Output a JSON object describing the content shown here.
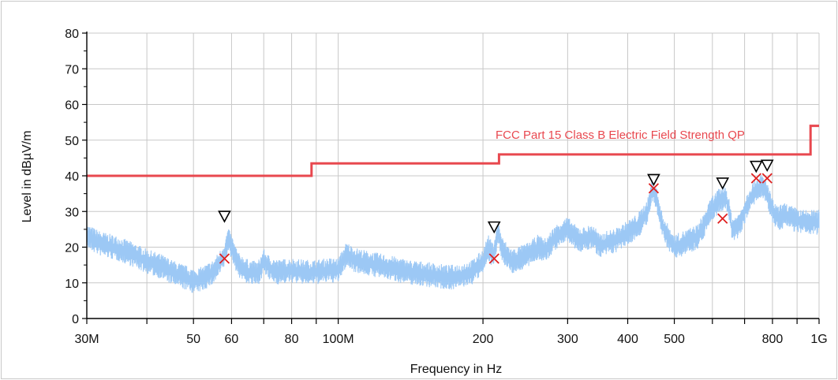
{
  "chart_data": {
    "type": "line",
    "xscale": "log",
    "xlim": [
      30000000,
      1000000000
    ],
    "ylim": [
      0,
      80
    ],
    "xlabel": "Frequency in Hz",
    "ylabel": "Level in dBµV/m",
    "grid": true,
    "x_ticks": [
      {
        "value": 30000000,
        "label": "30M"
      },
      {
        "value": 50000000,
        "label": "50"
      },
      {
        "value": 60000000,
        "label": "60"
      },
      {
        "value": 80000000,
        "label": "80"
      },
      {
        "value": 100000000,
        "label": "100M"
      },
      {
        "value": 200000000,
        "label": "200"
      },
      {
        "value": 300000000,
        "label": "300"
      },
      {
        "value": 400000000,
        "label": "400"
      },
      {
        "value": 500000000,
        "label": "500"
      },
      {
        "value": 800000000,
        "label": "800"
      },
      {
        "value": 1000000000,
        "label": "1G"
      }
    ],
    "x_minor_grid": [
      40000000,
      70000000,
      90000000,
      600000000,
      700000000,
      900000000
    ],
    "y_ticks": [
      0,
      10,
      20,
      30,
      40,
      50,
      60,
      70,
      80
    ],
    "limit": {
      "name": "FCC Part 15 Class B Electric Field Strength QP",
      "color": "#e8484f",
      "steps": [
        {
          "from": 30000000,
          "to": 88000000,
          "level": 40
        },
        {
          "from": 88000000,
          "to": 216000000,
          "level": 43.5
        },
        {
          "from": 216000000,
          "to": 960000000,
          "level": 46
        },
        {
          "from": 960000000,
          "to": 1000000000,
          "level": 54
        }
      ]
    },
    "spectrum": {
      "color": "#9cc8f5",
      "points": [
        [
          30,
          23
        ],
        [
          32,
          21
        ],
        [
          35,
          19.5
        ],
        [
          38,
          17.5
        ],
        [
          40,
          16
        ],
        [
          43,
          14.5
        ],
        [
          45,
          13
        ],
        [
          48,
          11.5
        ],
        [
          50,
          10.5
        ],
        [
          52,
          11
        ],
        [
          55,
          13
        ],
        [
          57,
          16
        ],
        [
          58,
          18
        ],
        [
          59,
          22
        ],
        [
          60,
          20
        ],
        [
          62,
          15
        ],
        [
          65,
          13
        ],
        [
          68,
          12.5
        ],
        [
          70,
          16
        ],
        [
          72,
          14
        ],
        [
          75,
          13
        ],
        [
          80,
          13.5
        ],
        [
          85,
          13
        ],
        [
          90,
          13
        ],
        [
          95,
          13.5
        ],
        [
          100,
          13.5
        ],
        [
          104,
          18
        ],
        [
          108,
          16.5
        ],
        [
          115,
          15.5
        ],
        [
          120,
          15
        ],
        [
          130,
          14
        ],
        [
          140,
          13
        ],
        [
          150,
          12.5
        ],
        [
          160,
          12
        ],
        [
          170,
          11.5
        ],
        [
          180,
          12
        ],
        [
          190,
          13
        ],
        [
          200,
          16
        ],
        [
          205,
          20
        ],
        [
          210,
          17.5
        ],
        [
          215,
          24
        ],
        [
          220,
          19
        ],
        [
          230,
          16
        ],
        [
          240,
          17
        ],
        [
          250,
          18
        ],
        [
          260,
          20
        ],
        [
          270,
          19
        ],
        [
          280,
          22
        ],
        [
          290,
          24
        ],
        [
          300,
          25
        ],
        [
          310,
          23
        ],
        [
          320,
          22
        ],
        [
          340,
          23
        ],
        [
          350,
          20
        ],
        [
          360,
          21
        ],
        [
          380,
          22
        ],
        [
          400,
          24
        ],
        [
          420,
          26
        ],
        [
          440,
          30
        ],
        [
          450,
          36
        ],
        [
          460,
          33
        ],
        [
          470,
          27
        ],
        [
          480,
          24
        ],
        [
          500,
          20
        ],
        [
          520,
          21
        ],
        [
          540,
          22
        ],
        [
          560,
          23
        ],
        [
          580,
          27
        ],
        [
          600,
          31
        ],
        [
          620,
          33
        ],
        [
          640,
          34
        ],
        [
          650,
          30
        ],
        [
          660,
          25
        ],
        [
          680,
          26
        ],
        [
          700,
          30
        ],
        [
          720,
          34
        ],
        [
          740,
          36
        ],
        [
          760,
          37
        ],
        [
          780,
          35
        ],
        [
          800,
          30
        ],
        [
          820,
          28
        ],
        [
          850,
          29
        ],
        [
          880,
          28
        ],
        [
          900,
          27.5
        ],
        [
          920,
          27
        ],
        [
          960,
          27
        ],
        [
          1000,
          27
        ]
      ]
    },
    "peak_markers": {
      "color": "#000000",
      "points": [
        {
          "f": 58000000,
          "level": 28.5
        },
        {
          "f": 211000000,
          "level": 25.5
        },
        {
          "f": 453000000,
          "level": 38.8
        },
        {
          "f": 630000000,
          "level": 37.8
        },
        {
          "f": 740000000,
          "level": 42.5
        },
        {
          "f": 780000000,
          "level": 42.8
        }
      ]
    },
    "qp_markers": {
      "color": "#e02020",
      "points": [
        {
          "f": 58000000,
          "level": 16.8
        },
        {
          "f": 211000000,
          "level": 16.8
        },
        {
          "f": 453000000,
          "level": 36.5
        },
        {
          "f": 630000000,
          "level": 28
        },
        {
          "f": 740000000,
          "level": 39.3
        },
        {
          "f": 780000000,
          "level": 39.3
        }
      ]
    }
  }
}
